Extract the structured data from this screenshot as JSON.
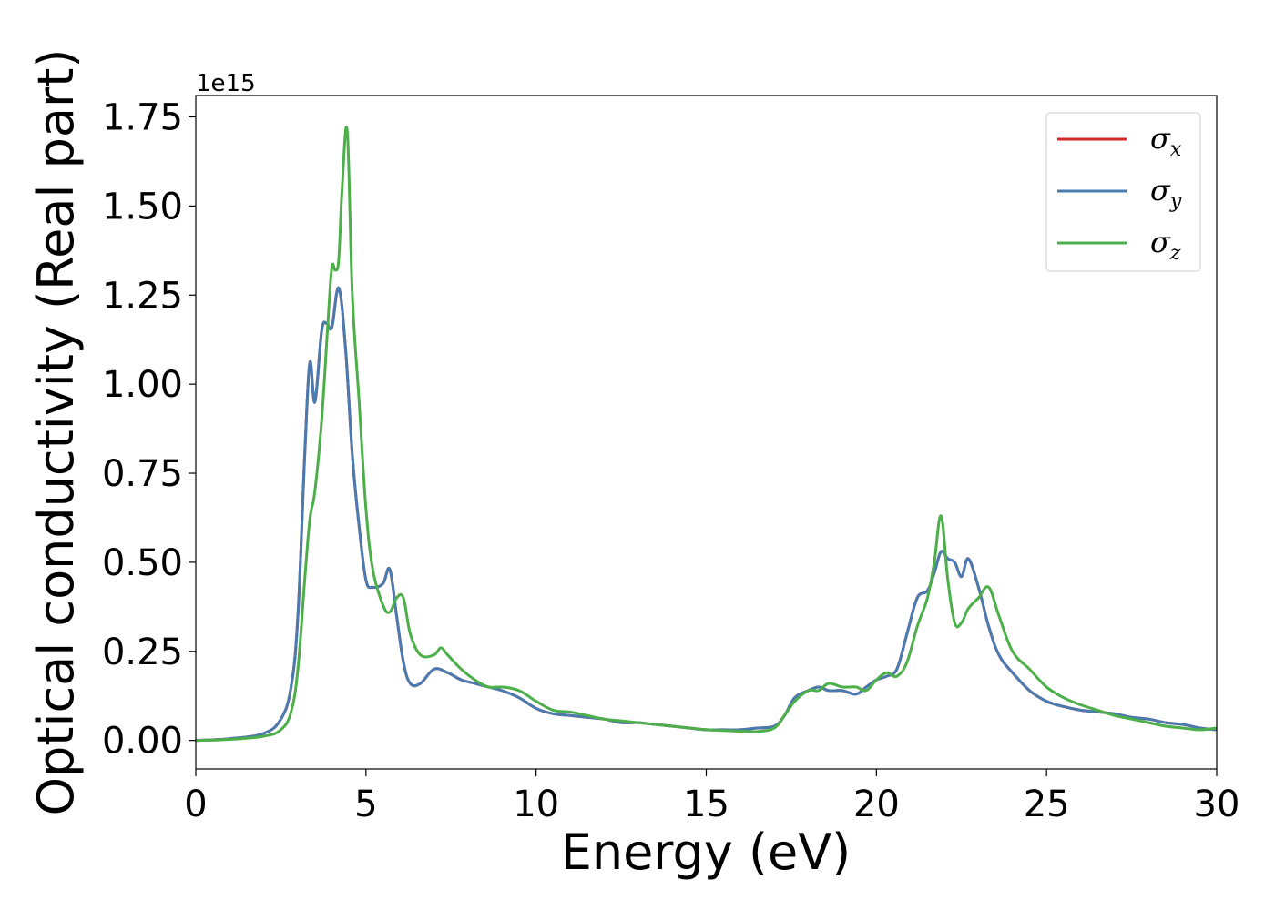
{
  "chart_data": {
    "type": "line",
    "title": "",
    "xlabel": "Energy (eV)",
    "ylabel": "Optical conductivity (Real part)",
    "y_offset_label": "1e15",
    "xlim": [
      0,
      30
    ],
    "ylim": [
      -0.08,
      1.81
    ],
    "xticks": [
      0,
      5,
      10,
      15,
      20,
      25,
      30
    ],
    "yticks": [
      0.0,
      0.25,
      0.5,
      0.75,
      1.0,
      1.25,
      1.5,
      1.75
    ],
    "xtick_labels": [
      "0",
      "5",
      "10",
      "15",
      "20",
      "25",
      "30"
    ],
    "ytick_labels": [
      "0.00",
      "0.25",
      "0.50",
      "0.75",
      "1.00",
      "1.25",
      "1.50",
      "1.75"
    ],
    "grid": false,
    "legend_position": "top-right",
    "series": [
      {
        "name": "σ",
        "sub": "x",
        "color": "#d62728",
        "x": [
          0,
          1,
          2,
          2.5,
          2.8,
          3.0,
          3.2,
          3.35,
          3.5,
          3.7,
          3.85,
          4.0,
          4.2,
          4.4,
          4.6,
          4.8,
          5.0,
          5.2,
          5.5,
          5.7,
          5.9,
          6.1,
          6.3,
          6.6,
          7.0,
          7.4,
          7.8,
          8.2,
          8.6,
          9.0,
          9.5,
          10.0,
          10.5,
          11.0,
          11.5,
          12.0,
          12.5,
          13.0,
          13.5,
          14.0,
          14.5,
          15.0,
          15.5,
          16.0,
          16.5,
          17.0,
          17.3,
          17.6,
          18.0,
          18.3,
          18.6,
          19.0,
          19.4,
          19.7,
          20.0,
          20.3,
          20.6,
          20.9,
          21.2,
          21.5,
          21.7,
          21.9,
          22.1,
          22.3,
          22.5,
          22.7,
          23.0,
          23.3,
          23.6,
          24.0,
          24.5,
          25.0,
          25.5,
          26.0,
          26.5,
          27.0,
          27.5,
          28.0,
          28.5,
          29.0,
          29.5,
          30.0
        ],
        "y": [
          0.0,
          0.005,
          0.02,
          0.06,
          0.15,
          0.35,
          0.8,
          1.06,
          0.95,
          1.15,
          1.17,
          1.16,
          1.27,
          1.1,
          0.8,
          0.6,
          0.45,
          0.43,
          0.44,
          0.48,
          0.35,
          0.22,
          0.16,
          0.16,
          0.2,
          0.19,
          0.17,
          0.16,
          0.15,
          0.14,
          0.12,
          0.09,
          0.075,
          0.07,
          0.065,
          0.06,
          0.05,
          0.05,
          0.045,
          0.04,
          0.035,
          0.03,
          0.03,
          0.03,
          0.035,
          0.04,
          0.07,
          0.12,
          0.14,
          0.15,
          0.14,
          0.14,
          0.13,
          0.15,
          0.17,
          0.18,
          0.2,
          0.3,
          0.4,
          0.42,
          0.47,
          0.53,
          0.51,
          0.5,
          0.46,
          0.51,
          0.43,
          0.32,
          0.24,
          0.19,
          0.14,
          0.11,
          0.095,
          0.085,
          0.08,
          0.075,
          0.065,
          0.06,
          0.05,
          0.045,
          0.035,
          0.03
        ]
      },
      {
        "name": "σ",
        "sub": "y",
        "color": "#4a7bb0",
        "x": [
          0,
          1,
          2,
          2.5,
          2.8,
          3.0,
          3.2,
          3.35,
          3.5,
          3.7,
          3.85,
          4.0,
          4.2,
          4.4,
          4.6,
          4.8,
          5.0,
          5.2,
          5.5,
          5.7,
          5.9,
          6.1,
          6.3,
          6.6,
          7.0,
          7.4,
          7.8,
          8.2,
          8.6,
          9.0,
          9.5,
          10.0,
          10.5,
          11.0,
          11.5,
          12.0,
          12.5,
          13.0,
          13.5,
          14.0,
          14.5,
          15.0,
          15.5,
          16.0,
          16.5,
          17.0,
          17.3,
          17.6,
          18.0,
          18.3,
          18.6,
          19.0,
          19.4,
          19.7,
          20.0,
          20.3,
          20.6,
          20.9,
          21.2,
          21.5,
          21.7,
          21.9,
          22.1,
          22.3,
          22.5,
          22.7,
          23.0,
          23.3,
          23.6,
          24.0,
          24.5,
          25.0,
          25.5,
          26.0,
          26.5,
          27.0,
          27.5,
          28.0,
          28.5,
          29.0,
          29.5,
          30.0
        ],
        "y": [
          0.0,
          0.005,
          0.02,
          0.06,
          0.15,
          0.35,
          0.8,
          1.06,
          0.95,
          1.15,
          1.17,
          1.16,
          1.27,
          1.1,
          0.8,
          0.6,
          0.45,
          0.43,
          0.44,
          0.48,
          0.35,
          0.22,
          0.16,
          0.16,
          0.2,
          0.19,
          0.17,
          0.16,
          0.15,
          0.14,
          0.12,
          0.09,
          0.075,
          0.07,
          0.065,
          0.06,
          0.05,
          0.05,
          0.045,
          0.04,
          0.035,
          0.03,
          0.03,
          0.03,
          0.035,
          0.04,
          0.07,
          0.12,
          0.14,
          0.15,
          0.14,
          0.14,
          0.13,
          0.15,
          0.17,
          0.18,
          0.2,
          0.3,
          0.4,
          0.42,
          0.47,
          0.53,
          0.51,
          0.5,
          0.46,
          0.51,
          0.43,
          0.32,
          0.24,
          0.19,
          0.14,
          0.11,
          0.095,
          0.085,
          0.08,
          0.075,
          0.065,
          0.06,
          0.05,
          0.045,
          0.035,
          0.03
        ]
      },
      {
        "name": "σ",
        "sub": "z",
        "color": "#4daf4a",
        "x": [
          0,
          1,
          2,
          2.5,
          2.8,
          3.0,
          3.2,
          3.35,
          3.5,
          3.7,
          3.9,
          4.0,
          4.1,
          4.2,
          4.3,
          4.45,
          4.6,
          4.8,
          5.0,
          5.2,
          5.5,
          5.7,
          5.9,
          6.1,
          6.3,
          6.6,
          7.0,
          7.2,
          7.4,
          7.8,
          8.2,
          8.6,
          9.0,
          9.5,
          10.0,
          10.5,
          11.0,
          11.5,
          12.0,
          12.5,
          13.0,
          13.5,
          14.0,
          14.5,
          15.0,
          15.5,
          16.0,
          16.5,
          17.0,
          17.3,
          17.6,
          18.0,
          18.3,
          18.6,
          19.0,
          19.4,
          19.7,
          20.0,
          20.3,
          20.6,
          20.9,
          21.2,
          21.5,
          21.7,
          21.9,
          22.1,
          22.3,
          22.5,
          22.7,
          23.0,
          23.3,
          23.6,
          24.0,
          24.5,
          25.0,
          25.5,
          26.0,
          26.5,
          27.0,
          27.5,
          28.0,
          28.5,
          29.0,
          29.5,
          30.0
        ],
        "y": [
          0.0,
          0.003,
          0.012,
          0.03,
          0.08,
          0.2,
          0.45,
          0.62,
          0.7,
          0.9,
          1.2,
          1.33,
          1.32,
          1.35,
          1.55,
          1.71,
          1.25,
          0.95,
          0.65,
          0.48,
          0.38,
          0.36,
          0.4,
          0.4,
          0.3,
          0.24,
          0.24,
          0.26,
          0.24,
          0.2,
          0.17,
          0.15,
          0.15,
          0.14,
          0.11,
          0.085,
          0.08,
          0.07,
          0.06,
          0.055,
          0.05,
          0.045,
          0.04,
          0.035,
          0.03,
          0.028,
          0.026,
          0.025,
          0.035,
          0.07,
          0.11,
          0.14,
          0.14,
          0.16,
          0.15,
          0.15,
          0.14,
          0.17,
          0.19,
          0.18,
          0.22,
          0.32,
          0.4,
          0.5,
          0.63,
          0.45,
          0.33,
          0.33,
          0.37,
          0.4,
          0.43,
          0.35,
          0.25,
          0.2,
          0.15,
          0.12,
          0.1,
          0.085,
          0.07,
          0.06,
          0.05,
          0.04,
          0.035,
          0.03,
          0.035
        ]
      }
    ]
  }
}
